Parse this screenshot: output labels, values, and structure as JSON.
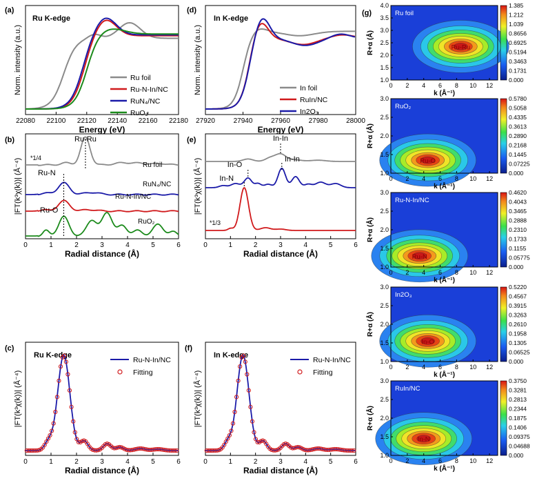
{
  "chart_data": [
    {
      "id": "a",
      "type": "line",
      "panel_label": "(a)",
      "title": "Ru K-edge",
      "xlabel": "Energy (eV)",
      "ylabel": "Norm. intensity (a.u.)",
      "xlim": [
        22080,
        22180
      ],
      "xticks": [
        22080,
        22100,
        22120,
        22140,
        22160,
        22180
      ],
      "legend": [
        {
          "name": "Ru foil",
          "color": "#8a8a8a"
        },
        {
          "name": "Ru-N-In/NC",
          "color": "#d0191b"
        },
        {
          "name": "RuN4/NC",
          "color": "#1a1aa8"
        },
        {
          "name": "RuO2",
          "color": "#1b8a1b"
        }
      ]
    },
    {
      "id": "d",
      "type": "line",
      "panel_label": "(d)",
      "title": "In K-edge",
      "xlabel": "Energy (eV)",
      "ylabel": "Norm. intensity (a.u.)",
      "xlim": [
        27920,
        28000
      ],
      "xticks": [
        27920,
        27940,
        27960,
        27980,
        28000
      ],
      "legend": [
        {
          "name": "In foil",
          "color": "#8a8a8a"
        },
        {
          "name": "RuIn/NC",
          "color": "#d0191b"
        },
        {
          "name": "In2O3",
          "color": "#1a1aa8"
        }
      ]
    },
    {
      "id": "b",
      "type": "line",
      "panel_label": "(b)",
      "xlabel": "Radial distance (Å)",
      "ylabel": "|FT(k3χ(k))| (Å-4)",
      "xlim": [
        0,
        6
      ],
      "xticks": [
        0,
        1,
        2,
        3,
        4,
        5,
        6
      ],
      "series": [
        {
          "name": "Ru foil",
          "color": "#8a8a8a"
        },
        {
          "name": "RuN4/NC",
          "color": "#1a1aa8"
        },
        {
          "name": "Ru-N-In/NC",
          "color": "#d0191b"
        },
        {
          "name": "RuO2",
          "color": "#1b8a1b"
        }
      ],
      "annotations": [
        "Ru-Ru",
        "Ru-N",
        "Ru-O",
        "*1/4"
      ]
    },
    {
      "id": "e",
      "type": "line",
      "panel_label": "(e)",
      "xlabel": "Radial distance (Å)",
      "ylabel": "|FT(k3χ(k))| (Å-4)",
      "xlim": [
        0,
        6
      ],
      "xticks": [
        0,
        1,
        2,
        3,
        4,
        5,
        6
      ],
      "series": [
        {
          "name": "In foil",
          "color": "#8a8a8a"
        },
        {
          "name": "In2O3",
          "color": "#1a1aa8"
        },
        {
          "name": "Ru-N-In/NC",
          "color": "#d0191b"
        }
      ],
      "annotations": [
        "In-In",
        "In-In",
        "In-O",
        "In-N",
        "*1/3"
      ]
    },
    {
      "id": "c",
      "type": "line",
      "panel_label": "(c)",
      "title": "Ru K-edge",
      "xlabel": "Radial distance (Å)",
      "ylabel": "|FT(k3χ(k))| (Å-4)",
      "xlim": [
        0,
        6
      ],
      "xticks": [
        0,
        1,
        2,
        3,
        4,
        5,
        6
      ],
      "legend": [
        {
          "name": "Ru-N-In/NC",
          "color": "#1a1aa8"
        },
        {
          "name": "Fitting",
          "color": "#d0191b"
        }
      ]
    },
    {
      "id": "f",
      "type": "line",
      "panel_label": "(f)",
      "title": "In K-edge",
      "xlabel": "Radial distance (Å)",
      "ylabel": "|FT(k3χ(k))| (Å-4)",
      "xlim": [
        0,
        6
      ],
      "xticks": [
        0,
        1,
        2,
        3,
        4,
        5,
        6
      ],
      "legend": [
        {
          "name": "Ru-N-In/NC",
          "color": "#1a1aa8"
        },
        {
          "name": "Fitting",
          "color": "#d0191b"
        }
      ]
    },
    {
      "id": "g",
      "type": "heatmap",
      "panel_label": "(g)",
      "xlabel": "k (Å-1)",
      "ylabel": "R+α (Å)",
      "xlim": [
        0,
        13
      ],
      "xticks": [
        0,
        2,
        4,
        6,
        8,
        10,
        12
      ],
      "ylim": [
        1.0,
        4.0
      ],
      "maps": [
        {
          "label": "Ru foil",
          "peak": "Ru-Ru",
          "peak_k": 8.5,
          "peak_r": 2.35,
          "yticks": [
            "1.0",
            "1.5",
            "2.0",
            "2.5",
            "3.0",
            "3.5",
            "4.0"
          ],
          "yrange": [
            1.0,
            4.0
          ],
          "colorbar": [
            "1.385",
            "1.212",
            "1.039",
            "0.8656",
            "0.6925",
            "0.5194",
            "0.3463",
            "0.1731",
            "0.000"
          ]
        },
        {
          "label": "RuO2",
          "peak": "Ru-O",
          "peak_k": 4.5,
          "peak_r": 1.35,
          "yticks": [
            "1.0",
            "1.5",
            "2.0",
            "2.5",
            "3.0"
          ],
          "yrange": [
            1.0,
            3.0
          ],
          "colorbar": [
            "0.5780",
            "0.5058",
            "0.4335",
            "0.3613",
            "0.2890",
            "0.2168",
            "0.1445",
            "0.07225",
            "0.000"
          ]
        },
        {
          "label": "Ru-N-In/NC",
          "peak": "Ru-N",
          "peak_k": 3.5,
          "peak_r": 1.3,
          "yticks": [
            "1.0",
            "1.5",
            "2.0",
            "2.5",
            "3.0"
          ],
          "yrange": [
            1.0,
            3.0
          ],
          "colorbar": [
            "0.4620",
            "0.4043",
            "0.3465",
            "0.2888",
            "0.2310",
            "0.1733",
            "0.1155",
            "0.05775",
            "0.000"
          ]
        },
        {
          "label": "In2O3",
          "peak": "In-O",
          "peak_k": 4.5,
          "peak_r": 1.55,
          "yticks": [
            "1.0",
            "1.5",
            "2.0",
            "2.5",
            "3.0"
          ],
          "yrange": [
            1.0,
            3.0
          ],
          "colorbar": [
            "0.5220",
            "0.4567",
            "0.3915",
            "0.3263",
            "0.2610",
            "0.1958",
            "0.1305",
            "0.06525",
            "0.000"
          ]
        },
        {
          "label": "RuIn/NC",
          "peak": "In-N",
          "peak_k": 4.0,
          "peak_r": 1.45,
          "yticks": [
            "1.0",
            "1.5",
            "2.0",
            "2.5",
            "3.0"
          ],
          "yrange": [
            1.0,
            3.0
          ],
          "colorbar": [
            "0.3750",
            "0.3281",
            "0.2813",
            "0.2344",
            "0.1875",
            "0.1406",
            "0.09375",
            "0.04688",
            "0.000"
          ]
        }
      ]
    }
  ]
}
